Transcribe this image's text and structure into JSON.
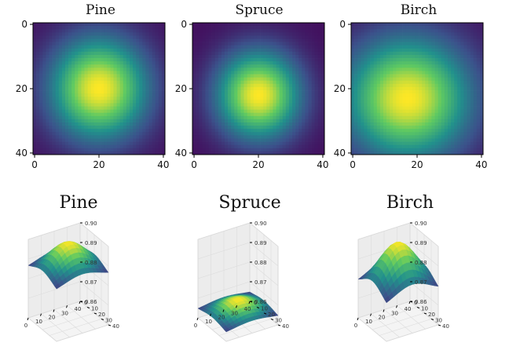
{
  "colors": {
    "colormap": "viridis",
    "viridis_stops": [
      "#440154",
      "#3b528b",
      "#21918c",
      "#5ec962",
      "#fde725"
    ]
  },
  "chart_data": [
    {
      "type": "heatmap",
      "title": "Pine",
      "grid_size": 41,
      "peak": {
        "x": 20,
        "y": 20
      },
      "spread": {
        "x": 10.5,
        "y": 11.0
      },
      "x_ticks": [
        "0",
        "20",
        "40"
      ],
      "y_ticks": [
        "0",
        "20",
        "40"
      ],
      "colormap": "viridis"
    },
    {
      "type": "heatmap",
      "title": "Spruce",
      "grid_size": 41,
      "peak": {
        "x": 20,
        "y": 22
      },
      "spread": {
        "x": 9.0,
        "y": 9.5
      },
      "x_ticks": [
        "0",
        "20",
        "40"
      ],
      "y_ticks": [
        "0",
        "20",
        "40"
      ],
      "colormap": "viridis"
    },
    {
      "type": "heatmap",
      "title": "Birch",
      "grid_size": 41,
      "peak": {
        "x": 17,
        "y": 23
      },
      "spread": {
        "x": 13.5,
        "y": 13.0
      },
      "x_ticks": [
        "0",
        "20",
        "40"
      ],
      "y_ticks": [
        "0",
        "20",
        "40"
      ],
      "colormap": "viridis"
    },
    {
      "type": "surface",
      "title": "Birch",
      "display_title": "Birch",
      "x_ticks": [
        "0",
        "10",
        "20",
        "30",
        "40"
      ],
      "y_ticks": [
        "0",
        "10",
        "20",
        "30",
        "40"
      ],
      "z_ticks": [
        "0.86",
        "0.87",
        "0.88",
        "0.89",
        "0.90"
      ],
      "zlim": [
        0.86,
        0.9
      ],
      "z_peak": 0.9,
      "z_edge": 0.877,
      "colormap": "viridis"
    }
  ],
  "surfaces": [
    {
      "title": "Pine",
      "x_ticks": [
        "0",
        "10",
        "20",
        "30",
        "40"
      ],
      "y_ticks": [
        "0",
        "10",
        "20",
        "30",
        "40"
      ],
      "z_ticks": [
        "0.86",
        "0.87",
        "0.88",
        "0.89",
        "0.90"
      ],
      "zlim": [
        0.86,
        0.9
      ],
      "z_peak": 0.9,
      "z_edge": 0.885
    },
    {
      "title": "Spruce",
      "x_ticks": [
        "0",
        "10",
        "20",
        "30",
        "40"
      ],
      "y_ticks": [
        "0",
        "10",
        "20",
        "30",
        "40"
      ],
      "z_ticks": [
        "0.86",
        "0.87",
        "0.88",
        "0.89",
        "0.90"
      ],
      "zlim": [
        0.86,
        0.9
      ],
      "z_peak": 0.871,
      "z_edge": 0.864
    },
    {
      "title": "Birch",
      "x_ticks": [
        "0",
        "10",
        "20",
        "30",
        "40"
      ],
      "y_ticks": [
        "0",
        "10",
        "20",
        "30",
        "40"
      ],
      "z_ticks": [
        "0.86",
        "0.87",
        "0.88",
        "0.89",
        "0.90"
      ],
      "zlim": [
        0.86,
        0.9
      ],
      "z_peak": 0.9,
      "z_edge": 0.877
    }
  ]
}
